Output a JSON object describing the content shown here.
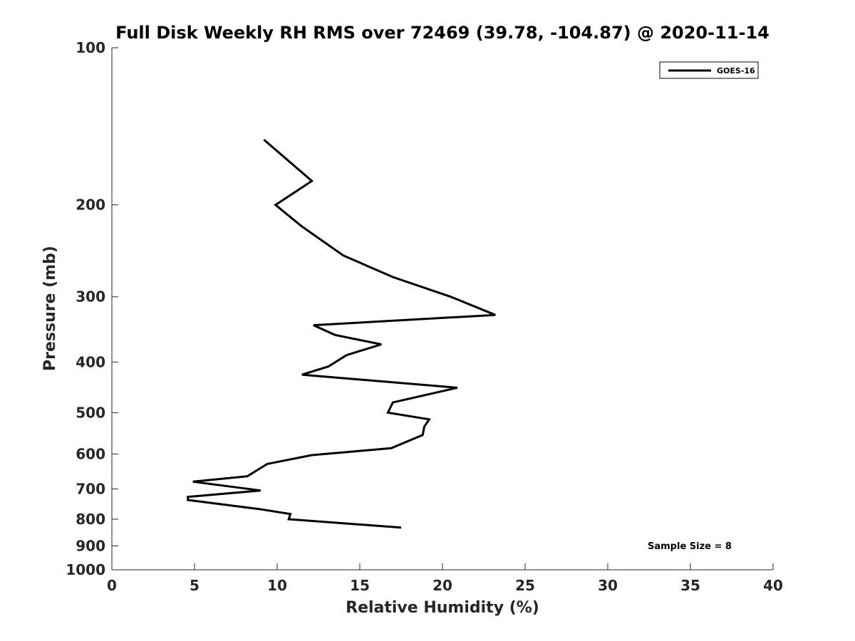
{
  "chart_data": {
    "type": "line",
    "title": "Full Disk Weekly RH RMS over 72469 (39.78, -104.87) @ 2020-11-14",
    "xlabel": "Relative Humidity (%)",
    "ylabel": "Pressure (mb)",
    "xlim": [
      0,
      40
    ],
    "ylim": [
      100,
      1000
    ],
    "y_scale": "log",
    "y_reversed": true,
    "x_ticks": [
      0,
      5,
      10,
      15,
      20,
      25,
      30,
      35,
      40
    ],
    "y_ticks": [
      100,
      200,
      300,
      400,
      500,
      600,
      700,
      800,
      900,
      1000
    ],
    "grid": false,
    "legend_position": "top-right",
    "annotation": "Sample Size = 8",
    "series": [
      {
        "name": "GOES-16",
        "color": "#000000",
        "x": [
          9.2,
          12.1,
          9.9,
          11.5,
          14.0,
          17.0,
          20.5,
          23.2,
          12.2,
          13.5,
          16.3,
          14.2,
          13.1,
          11.5,
          20.9,
          17.0,
          16.7,
          19.2,
          18.9,
          18.8,
          16.9,
          12.1,
          9.4,
          8.2,
          4.9,
          9.0,
          4.6,
          4.6,
          8.9,
          10.8,
          10.7,
          17.5
        ],
        "y": [
          150,
          180,
          200,
          220,
          250,
          275,
          300,
          325,
          340,
          355,
          370,
          388,
          408,
          423,
          448,
          478,
          500,
          515,
          532,
          552,
          585,
          603,
          627,
          662,
          678,
          705,
          725,
          735,
          765,
          782,
          800,
          830
        ]
      }
    ]
  }
}
